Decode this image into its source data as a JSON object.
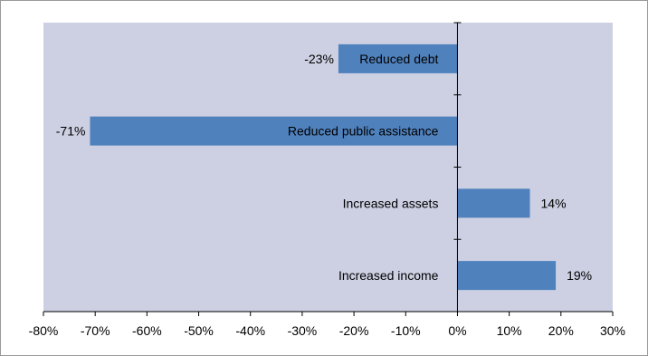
{
  "chart_data": {
    "type": "bar",
    "orientation": "horizontal",
    "categories": [
      "Reduced debt",
      "Reduced public assistance",
      "Increased assets",
      "Increased income"
    ],
    "values": [
      -23,
      -71,
      14,
      19
    ],
    "value_labels": [
      "-23%",
      "-71%",
      "14%",
      "19%"
    ],
    "xlim": [
      -80,
      30
    ],
    "x_ticks": [
      -80,
      -70,
      -60,
      -50,
      -40,
      -30,
      -20,
      -10,
      0,
      10,
      20,
      30
    ],
    "x_tick_labels": [
      "-80%",
      "-70%",
      "-60%",
      "-50%",
      "-40%",
      "-30%",
      "-20%",
      "-10%",
      "0%",
      "10%",
      "20%",
      "30%"
    ],
    "title": "",
    "xlabel": "",
    "ylabel": "",
    "grid": false,
    "legend": "none",
    "colors": {
      "bar": "#4f81bd",
      "plot_background": "#ccd0e2",
      "axis": "#000000"
    }
  }
}
